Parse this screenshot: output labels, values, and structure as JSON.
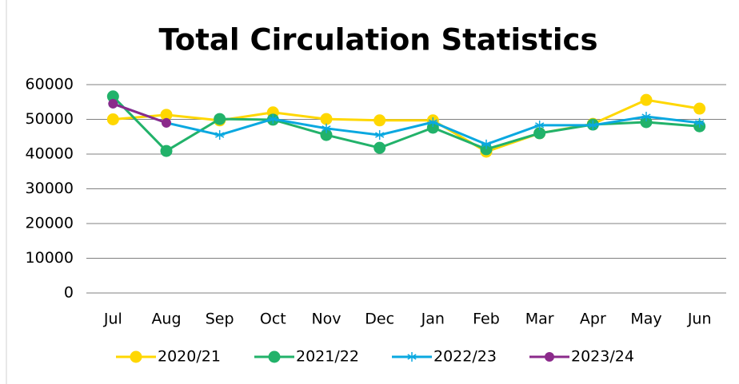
{
  "chart_data": {
    "type": "line",
    "title": "Total Circulation Statistics",
    "categories": [
      "Jul",
      "Aug",
      "Sep",
      "Oct",
      "Nov",
      "Dec",
      "Jan",
      "Feb",
      "Mar",
      "Apr",
      "May",
      "Jun"
    ],
    "series": [
      {
        "name": "2020/21",
        "color": "#ffd700",
        "marker": "circle",
        "values": [
          50000,
          51300,
          49700,
          52000,
          50100,
          49700,
          49700,
          40700,
          46000,
          48700,
          55600,
          53100
        ]
      },
      {
        "name": "2021/22",
        "color": "#22b26a",
        "marker": "circle",
        "values": [
          56600,
          40900,
          50100,
          49900,
          45500,
          41800,
          47600,
          41400,
          46000,
          48500,
          49200,
          48000
        ]
      },
      {
        "name": "2022/23",
        "color": "#0aa8e0",
        "marker": "asterisk",
        "values": [
          54500,
          49000,
          45500,
          50100,
          47400,
          45500,
          49200,
          42800,
          48300,
          48300,
          50800,
          49000
        ]
      },
      {
        "name": "2023/24",
        "color": "#8b2a8b",
        "marker": "circle",
        "values": [
          54500,
          49000,
          null,
          null,
          null,
          null,
          null,
          null,
          null,
          null,
          null,
          null
        ]
      }
    ],
    "ylim": [
      0,
      60000
    ],
    "yticks": [
      0,
      10000,
      20000,
      30000,
      40000,
      50000,
      60000
    ],
    "grid": true,
    "legend": "bottom"
  }
}
